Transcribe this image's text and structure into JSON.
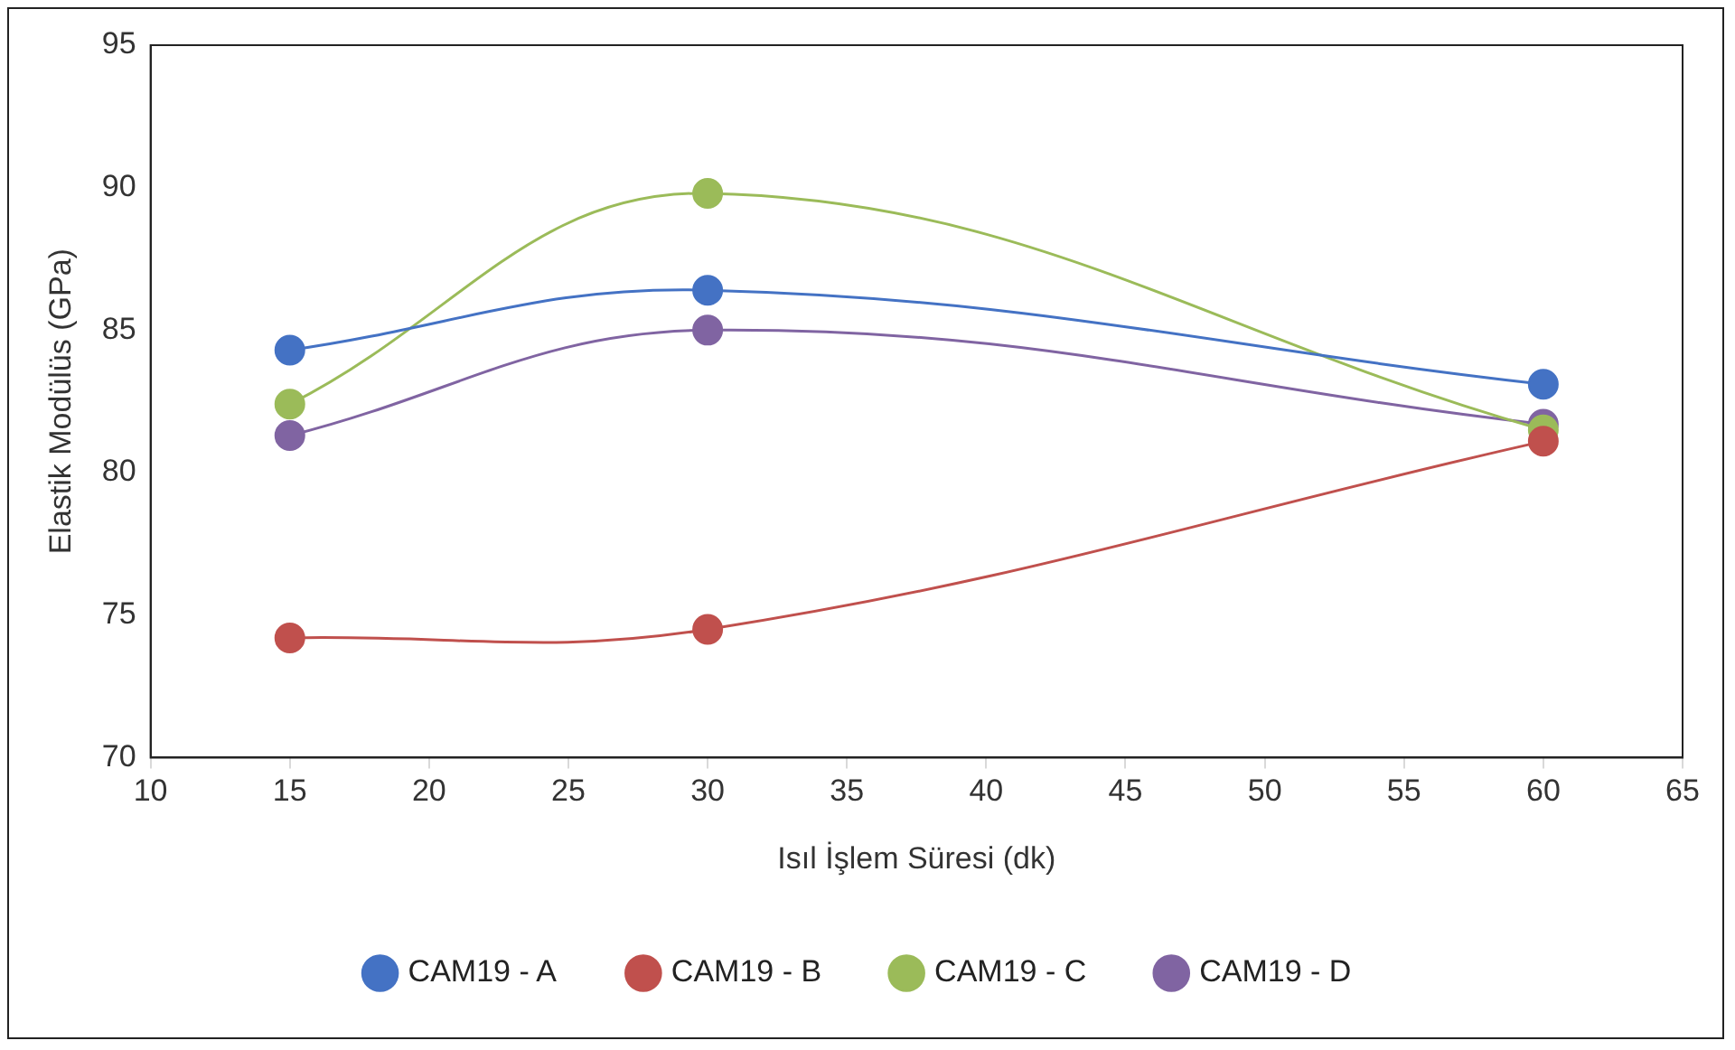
{
  "chart_data": {
    "type": "line",
    "xlabel": "Isıl İşlem Süresi (dk)",
    "ylabel": "Elastik Modülüs (GPa)",
    "x": [
      15,
      30,
      60
    ],
    "series": [
      {
        "name": "CAM19 - A",
        "color": "#4472c4",
        "values": [
          84.3,
          86.4,
          83.1
        ]
      },
      {
        "name": "CAM19 - B",
        "color": "#c0504d",
        "values": [
          74.2,
          74.5,
          81.1
        ]
      },
      {
        "name": "CAM19 - C",
        "color": "#9bbb59",
        "values": [
          82.4,
          89.8,
          81.5
        ]
      },
      {
        "name": "CAM19 - D",
        "color": "#8064a2",
        "values": [
          81.3,
          85.0,
          81.7
        ]
      }
    ],
    "xlim": [
      10,
      65
    ],
    "xticks": [
      10,
      15,
      20,
      25,
      30,
      35,
      40,
      45,
      50,
      55,
      60,
      65
    ],
    "ylim": [
      70,
      95
    ],
    "yticks": [
      70,
      75,
      80,
      85,
      90,
      95
    ],
    "grid": false,
    "legend": "bottom",
    "marker": "circle",
    "line_style": "solid"
  }
}
